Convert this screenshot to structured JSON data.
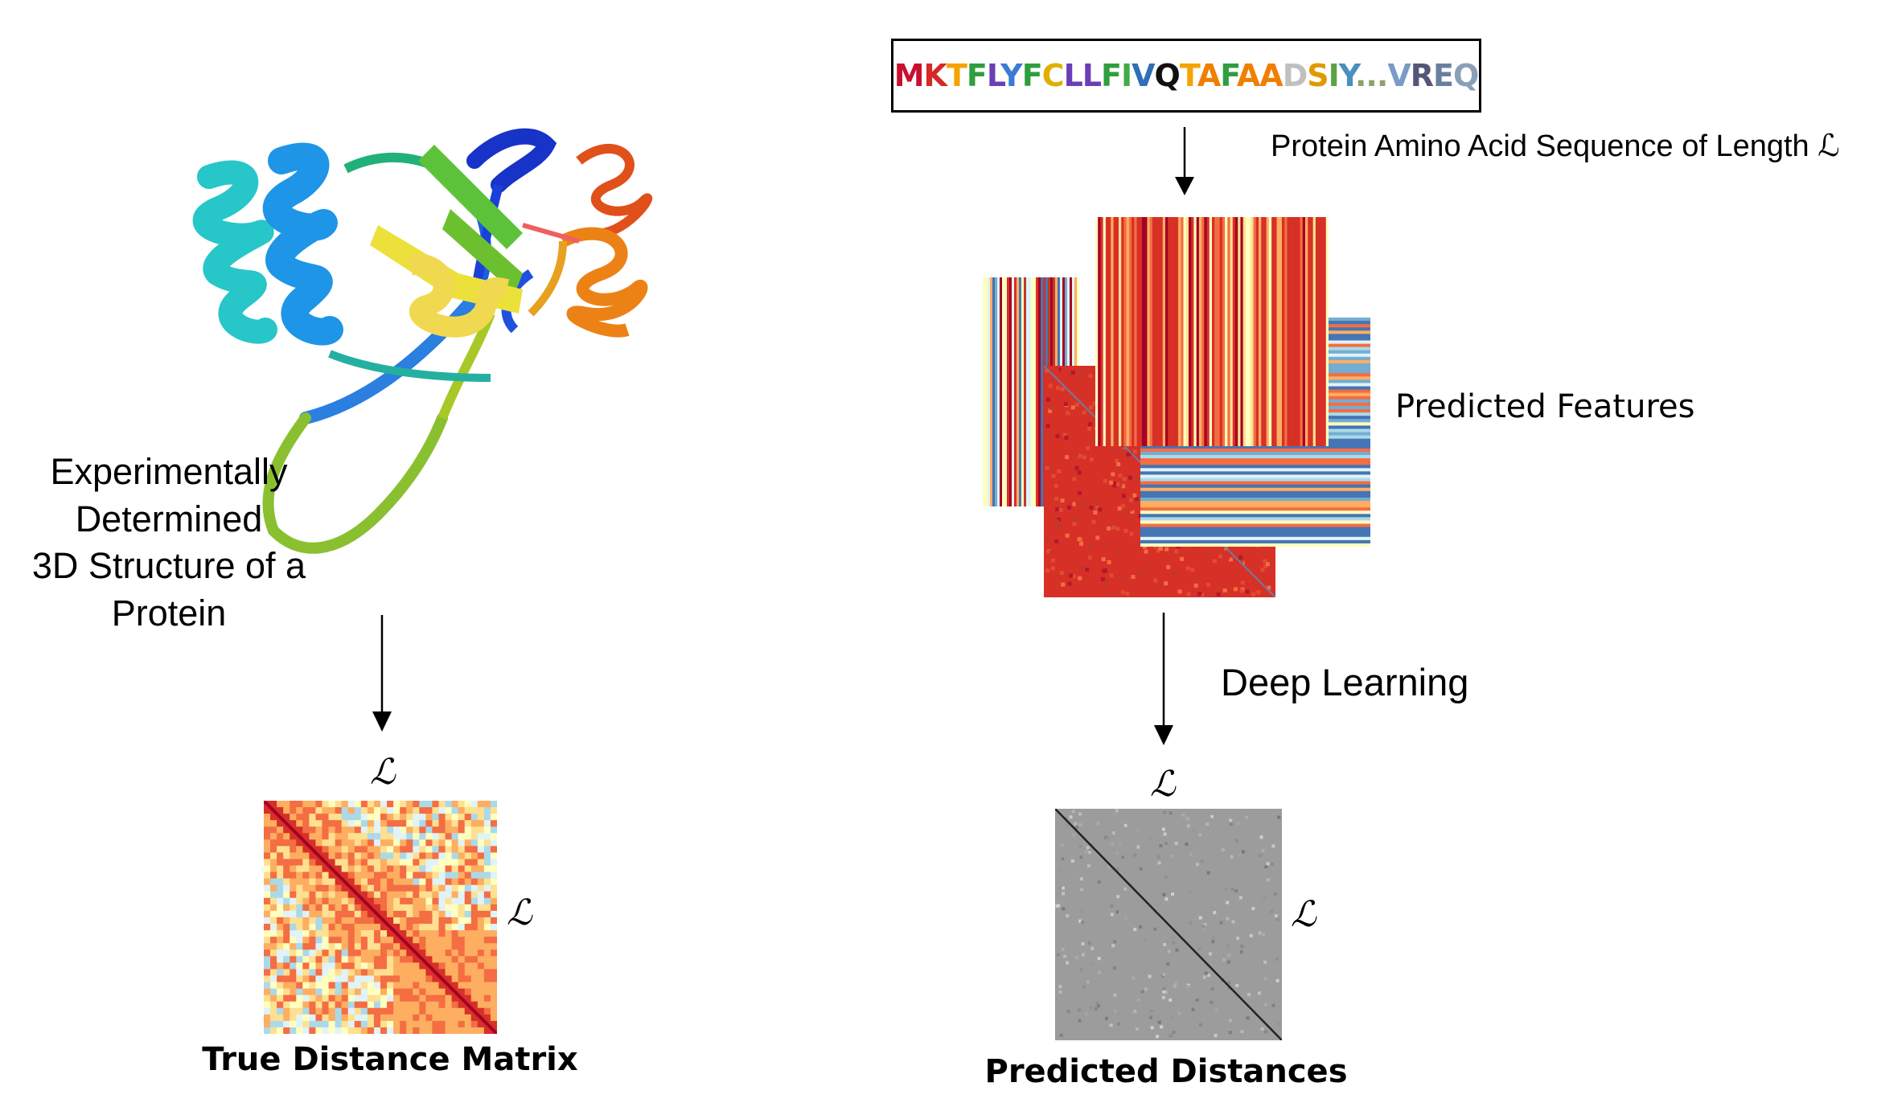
{
  "left": {
    "structure_label": [
      "Experimentally",
      "Determined",
      "3D Structure of a",
      "Protein"
    ],
    "matrix_symbol_top": "ℒ",
    "matrix_symbol_side": "ℒ",
    "matrix_caption": "True Distance Matrix"
  },
  "right": {
    "sequence": [
      {
        "t": "M",
        "c": "#c8102e"
      },
      {
        "t": "K",
        "c": "#d62828"
      },
      {
        "t": "T",
        "c": "#f4a300"
      },
      {
        "t": "F",
        "c": "#2e9e3e"
      },
      {
        "t": "L",
        "c": "#6a3fb5"
      },
      {
        "t": "Y",
        "c": "#3a7bd5"
      },
      {
        "t": "F",
        "c": "#2e9e3e"
      },
      {
        "t": "C",
        "c": "#e0b000"
      },
      {
        "t": "L",
        "c": "#6a3fb5"
      },
      {
        "t": "L",
        "c": "#6a3fb5"
      },
      {
        "t": "F",
        "c": "#2e9e3e"
      },
      {
        "t": "I",
        "c": "#44aa44"
      },
      {
        "t": "V",
        "c": "#2e6fb5"
      },
      {
        "t": "Q",
        "c": "#111111"
      },
      {
        "t": "T",
        "c": "#f4a300"
      },
      {
        "t": "A",
        "c": "#f07f00"
      },
      {
        "t": "F",
        "c": "#2e9e3e"
      },
      {
        "t": "A",
        "c": "#f07f00"
      },
      {
        "t": "A",
        "c": "#f07f00"
      },
      {
        "t": "D",
        "c": "#c0c0c0"
      },
      {
        "t": "S",
        "c": "#e09a00"
      },
      {
        "t": "I",
        "c": "#5aa24a"
      },
      {
        "t": "Y",
        "c": "#4a8fc0"
      },
      {
        "t": "...",
        "c": "#8fa06a"
      },
      {
        "t": "V",
        "c": "#7a9ac8"
      },
      {
        "t": "R",
        "c": "#555577"
      },
      {
        "t": "E",
        "c": "#6a7fa0"
      },
      {
        "t": "Q",
        "c": "#8aa0b8"
      }
    ],
    "sequence_label": "Protein Amino Acid Sequence of Length ℒ",
    "features_label": "Predicted Features",
    "method_label": "Deep Learning",
    "matrix_symbol_top": "ℒ",
    "matrix_symbol_side": "ℒ",
    "matrix_caption": "Predicted Distances"
  },
  "colors": {
    "arrow": "#000000",
    "heat_hot": "#d73027",
    "heat_warm": "#fdae61",
    "heat_mid": "#ffffbf",
    "heat_cool": "#abd9e9",
    "heat_cold": "#4575b4",
    "gray_bg": "#9c9c9c"
  }
}
